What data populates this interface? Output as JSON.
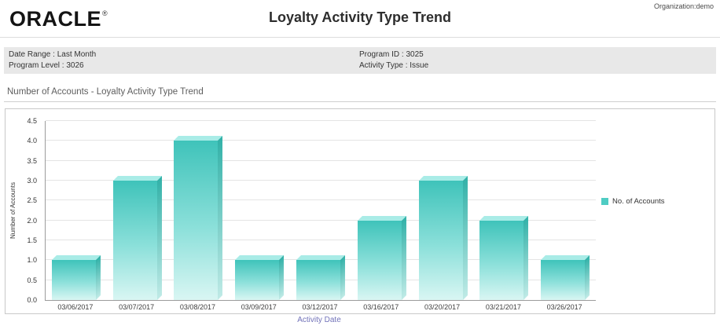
{
  "header": {
    "logo_text": "ORACLE",
    "registered_mark": "®",
    "title": "Loyalty Activity Type Trend",
    "organization": "Organization:demo"
  },
  "info_bar": {
    "left": [
      "Date Range : Last Month",
      "Program Level : 3026"
    ],
    "right": [
      "Program ID : 3025",
      "Activity Type : Issue"
    ]
  },
  "section_title": "Number of Accounts - Loyalty Activity Type Trend",
  "chart_data": {
    "type": "bar",
    "title": "Number of Accounts - Loyalty Activity Type Trend",
    "categories": [
      "03/06/2017",
      "03/07/2017",
      "03/08/2017",
      "03/09/2017",
      "03/12/2017",
      "03/16/2017",
      "03/20/2017",
      "03/21/2017",
      "03/26/2017"
    ],
    "series": [
      {
        "name": "No. of Accounts",
        "values": [
          1,
          3,
          4,
          1,
          1,
          2,
          3,
          2,
          1
        ]
      }
    ],
    "xlabel": "Activity Date",
    "ylabel": "Number of Accounts",
    "ylim": [
      0,
      4.5
    ],
    "yticks": [
      "0.0",
      "0.5",
      "1.0",
      "1.5",
      "2.0",
      "2.5",
      "3.0",
      "3.5",
      "4.0",
      "4.5"
    ],
    "grid": true,
    "legend_position": "right",
    "bar_color": "#4fccc3",
    "bar_gradient": [
      "#3fc3ba",
      "#8ce0da",
      "#d9f6f3"
    ],
    "bar_side_gradient": [
      "#32b1a8",
      "#bfeae6"
    ],
    "bar_top_color": "#a9ece7",
    "xlabel_color": "#7273b9"
  }
}
